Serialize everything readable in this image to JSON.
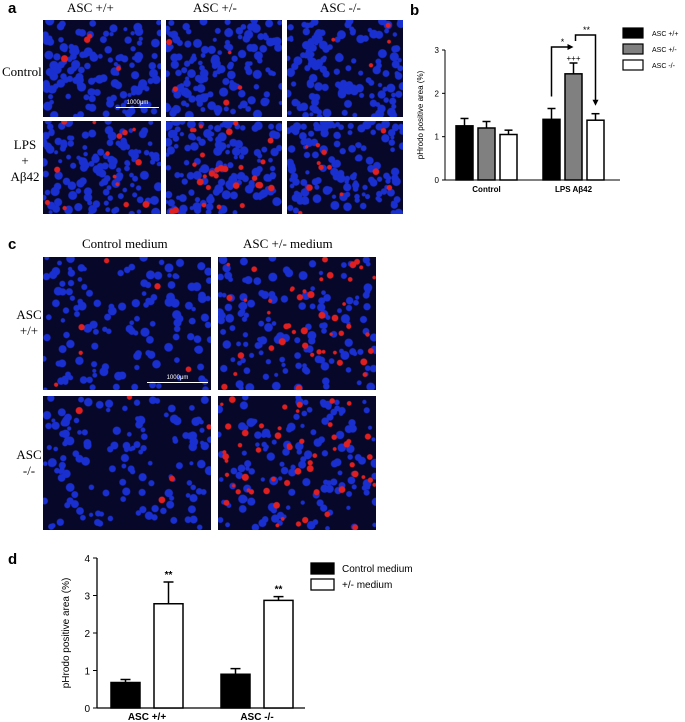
{
  "panel_a": {
    "letter": "a",
    "columns": [
      "ASC +/+",
      "ASC +/-",
      "ASC -/-"
    ],
    "row_control": "Control",
    "row_lps": [
      "LPS",
      "+",
      "Aβ42"
    ],
    "scale_label": "1000μm"
  },
  "panel_c": {
    "letter": "c",
    "columns": [
      "Control medium",
      "ASC +/- medium"
    ],
    "row1": [
      "ASC",
      "+/+"
    ],
    "row2": [
      "ASC",
      "-/-"
    ],
    "scale_label": "1000μm"
  },
  "colors": {
    "background_micro": "#07072a",
    "nuclei": "#1a2fd0",
    "phrodo": "#e02020",
    "black_bar": "#000000",
    "grey_bar": "#808080",
    "white_bar": "#ffffff"
  },
  "chart_data": [
    {
      "panel": "b",
      "type": "bar",
      "categories": [
        "Control",
        "LPS Aβ42"
      ],
      "series": [
        {
          "name": "ASC +/+",
          "values": [
            1.25,
            1.4
          ],
          "errors": [
            0.17,
            0.25
          ],
          "color": "#000000"
        },
        {
          "name": "ASC +/-",
          "values": [
            1.2,
            2.45
          ],
          "errors": [
            0.15,
            0.25
          ],
          "color": "#808080"
        },
        {
          "name": "ASC -/-",
          "values": [
            1.05,
            1.38
          ],
          "errors": [
            0.1,
            0.15
          ],
          "color": "#ffffff"
        }
      ],
      "ylabel": "pHrodo positive area (%)",
      "ylim": [
        0,
        3
      ],
      "yticks": [
        "0",
        "1",
        "2",
        "3"
      ],
      "legend": "right",
      "annotations": {
        "bracket_left": "*",
        "bracket_right": "**",
        "above_grey": "+++"
      }
    },
    {
      "panel": "d",
      "type": "bar",
      "categories": [
        "ASC +/+",
        "ASC -/-"
      ],
      "series": [
        {
          "name": "Control medium",
          "values": [
            0.68,
            0.9
          ],
          "errors": [
            0.08,
            0.15
          ],
          "color": "#000000"
        },
        {
          "name": "+/- medium",
          "values": [
            2.78,
            2.87
          ],
          "errors": [
            0.58,
            0.1
          ],
          "color": "#ffffff"
        }
      ],
      "ylabel": "pHrodo positive area (%)",
      "ylim": [
        0,
        4
      ],
      "yticks": [
        "0",
        "1",
        "2",
        "3",
        "4"
      ],
      "legend": "right",
      "annotations": {
        "above_white": [
          "**",
          "**"
        ]
      }
    }
  ]
}
